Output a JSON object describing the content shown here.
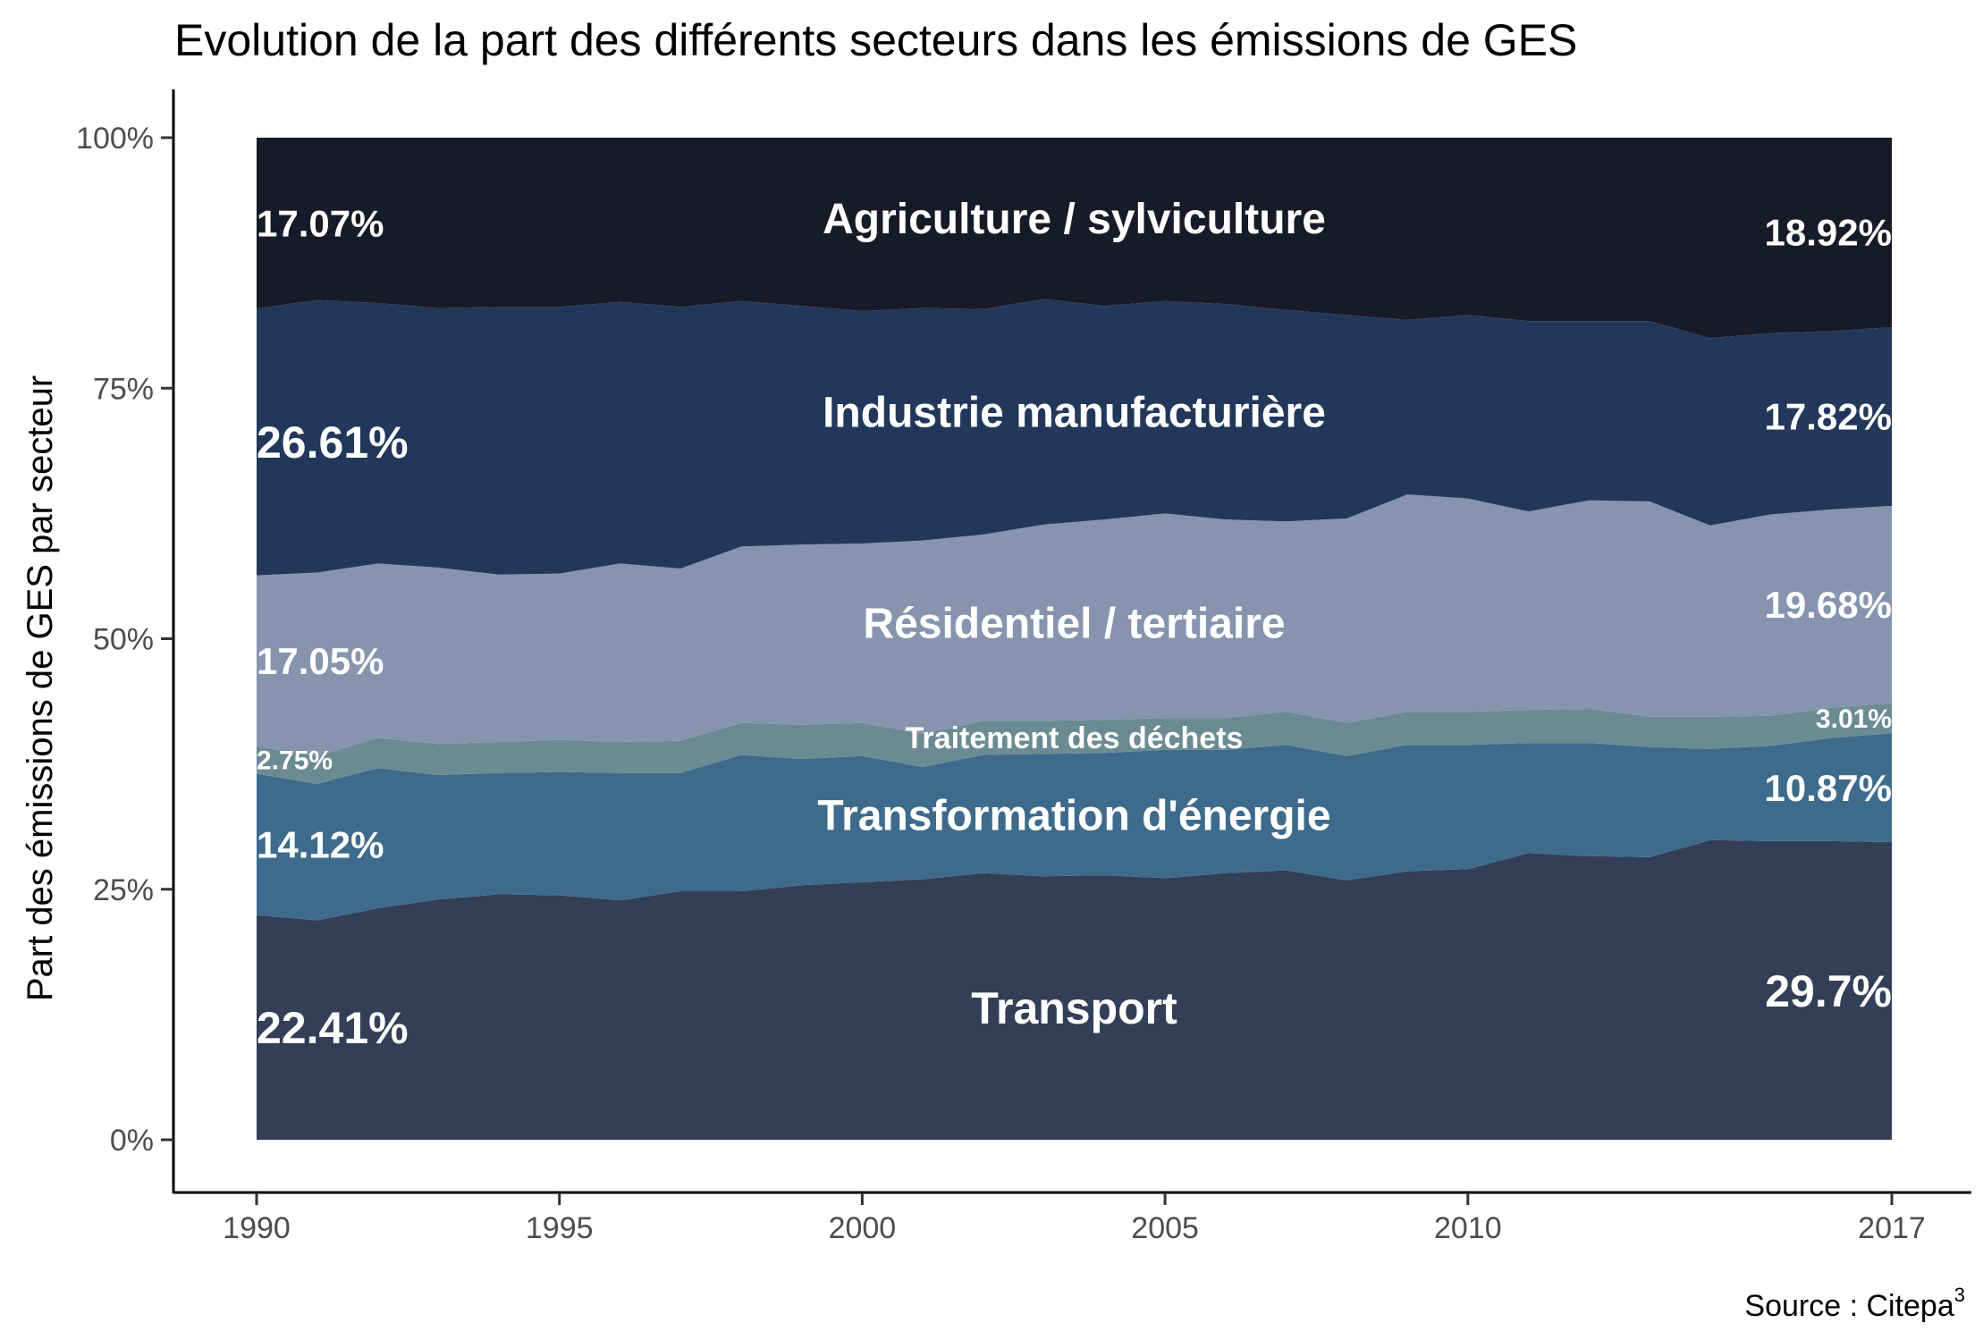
{
  "chart_data": {
    "type": "area",
    "stacked": "percent",
    "title": "Evolution de la part des différents secteurs dans les émissions de GES",
    "xlabel": "",
    "ylabel": "Part des émissions de GES par secteur",
    "source": "Source : Citepa",
    "source_superscript": "3",
    "xlim": [
      1990,
      2017
    ],
    "ylim": [
      0,
      100
    ],
    "x_ticks": [
      1990,
      1995,
      2000,
      2005,
      2010,
      2017
    ],
    "y_ticks": [
      0,
      25,
      50,
      75,
      100
    ],
    "y_tick_labels": [
      "0%",
      "25%",
      "50%",
      "75%",
      "100%"
    ],
    "grid": false,
    "legend": "none",
    "years": [
      1990,
      1991,
      1992,
      1993,
      1994,
      1995,
      1996,
      1997,
      1998,
      1999,
      2000,
      2001,
      2002,
      2003,
      2004,
      2005,
      2006,
      2007,
      2008,
      2009,
      2010,
      2011,
      2012,
      2013,
      2014,
      2015,
      2016,
      2017
    ],
    "series": [
      {
        "name": "Transport",
        "color": "#333f57",
        "values": [
          22.41,
          21.9,
          23.1,
          24.0,
          24.5,
          24.4,
          23.9,
          24.8,
          24.8,
          25.4,
          25.7,
          26.0,
          26.6,
          26.3,
          26.4,
          26.1,
          26.6,
          26.9,
          25.9,
          26.8,
          27.0,
          28.6,
          28.3,
          28.2,
          29.9,
          29.8,
          29.8,
          29.7
        ],
        "start_label": "22.41%",
        "end_label": "29.7%"
      },
      {
        "name": "Transformation d'énergie",
        "color": "#3e6b8c",
        "values": [
          14.12,
          13.6,
          14.0,
          12.4,
          12.1,
          12.3,
          12.7,
          11.8,
          13.6,
          12.6,
          12.6,
          11.2,
          11.8,
          12.2,
          12.2,
          12.8,
          12.3,
          12.5,
          12.4,
          12.6,
          12.4,
          11.0,
          11.3,
          11.0,
          9.1,
          9.5,
          10.3,
          10.87
        ],
        "start_label": "14.12%",
        "end_label": "10.87%"
      },
      {
        "name": "Traitement des déchets",
        "color": "#6b8a92",
        "values": [
          2.75,
          2.8,
          3.0,
          3.1,
          3.1,
          3.2,
          3.1,
          3.2,
          3.2,
          3.4,
          3.3,
          3.3,
          3.4,
          3.3,
          3.3,
          3.2,
          3.2,
          3.3,
          3.3,
          3.3,
          3.3,
          3.3,
          3.4,
          3.0,
          3.2,
          3.0,
          3.0,
          3.01
        ],
        "start_label": "2.75%",
        "end_label": "3.01%"
      },
      {
        "name": "Résidentiel / tertiaire",
        "color": "#8694ae",
        "values": [
          17.05,
          18.3,
          17.4,
          17.6,
          16.7,
          16.6,
          17.8,
          17.2,
          17.6,
          18.0,
          17.9,
          19.3,
          18.6,
          19.6,
          20.0,
          20.4,
          19.8,
          19.0,
          20.4,
          21.7,
          21.3,
          19.8,
          20.8,
          21.5,
          19.1,
          20.1,
          19.8,
          19.68
        ],
        "start_label": "17.05%",
        "end_label": "19.68%"
      },
      {
        "name": "Industrie manufacturière",
        "color": "#22375a",
        "values": [
          26.61,
          27.2,
          26.0,
          25.9,
          26.7,
          26.6,
          26.1,
          26.1,
          24.5,
          23.8,
          23.2,
          23.2,
          22.5,
          22.5,
          21.3,
          21.2,
          21.5,
          21.1,
          20.3,
          17.4,
          18.3,
          19.0,
          17.9,
          18.0,
          18.7,
          18.1,
          17.8,
          17.82
        ],
        "start_label": "26.61%",
        "end_label": "17.82%"
      },
      {
        "name": "Agriculture / sylviculture",
        "color": "#181a27",
        "values": [
          17.07,
          16.2,
          16.5,
          17.0,
          16.9,
          16.9,
          16.4,
          16.9,
          16.3,
          16.8,
          17.3,
          17.0,
          17.1,
          16.1,
          16.8,
          16.3,
          16.6,
          17.2,
          17.7,
          18.2,
          17.7,
          18.3,
          18.3,
          18.3,
          20.0,
          19.5,
          19.3,
          18.92
        ],
        "start_label": "17.07%",
        "end_label": "18.92%"
      }
    ]
  }
}
